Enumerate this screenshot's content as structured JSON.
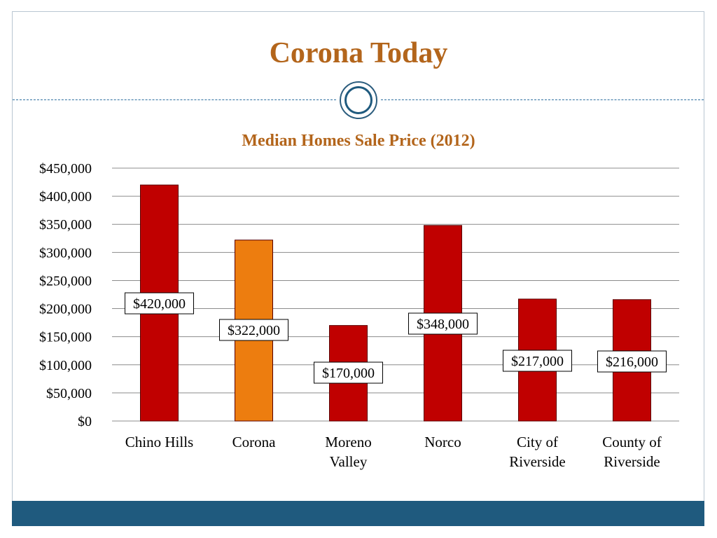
{
  "slide": {
    "title": "Corona Today",
    "accent_color": "#b3651b",
    "band_color": "#1f5a7e"
  },
  "chart_data": {
    "type": "bar",
    "title": "Median Homes Sale Price (2012)",
    "xlabel": "",
    "ylabel": "",
    "categories": [
      [
        "Chino Hills"
      ],
      [
        "Corona"
      ],
      [
        "Moreno",
        "Valley"
      ],
      [
        "Norco"
      ],
      [
        "City of",
        "Riverside"
      ],
      [
        "County of",
        "Riverside"
      ]
    ],
    "values": [
      420000,
      322000,
      170000,
      348000,
      217000,
      216000
    ],
    "data_labels": [
      "$420,000",
      "$322,000",
      "$170,000",
      "$348,000",
      "$217,000",
      "$216,000"
    ],
    "bar_colors": [
      "#c00000",
      "#ed7d0f",
      "#c00000",
      "#c00000",
      "#c00000",
      "#c00000"
    ],
    "ylim": [
      0,
      450000
    ],
    "y_ticks": [
      "$0",
      "$50,000",
      "$100,000",
      "$150,000",
      "$200,000",
      "$250,000",
      "$300,000",
      "$350,000",
      "$400,000",
      "$450,000"
    ],
    "grid": true,
    "legend": "none"
  }
}
